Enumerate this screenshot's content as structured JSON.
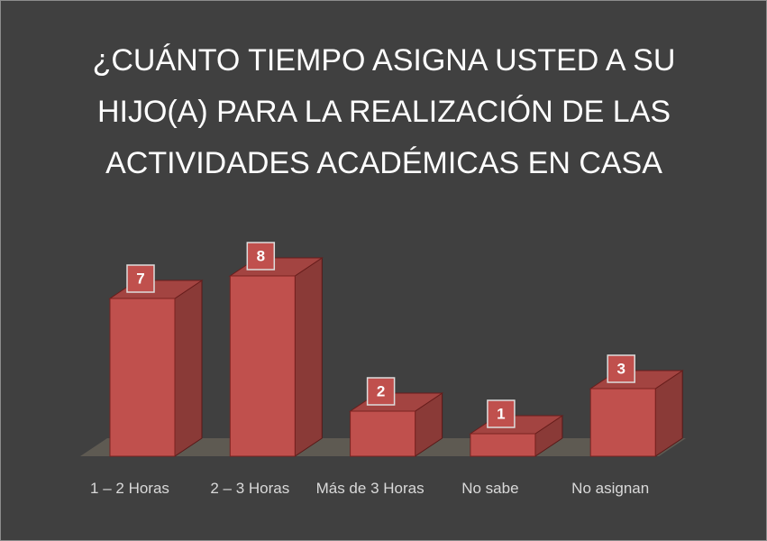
{
  "chart_data": {
    "type": "bar3d",
    "title": "¿CUÁNTO TIEMPO ASIGNA USTED A SU HIJO(A) PARA LA REALIZACIÓN DE LAS  ACTIVIDADES ACADÉMICAS EN CASA",
    "categories": [
      "1 – 2 Horas",
      "2 – 3 Horas",
      "Más de 3 Horas",
      "No sabe",
      "No asignan"
    ],
    "values": [
      7,
      8,
      2,
      1,
      3
    ],
    "color": "#c0504d"
  }
}
